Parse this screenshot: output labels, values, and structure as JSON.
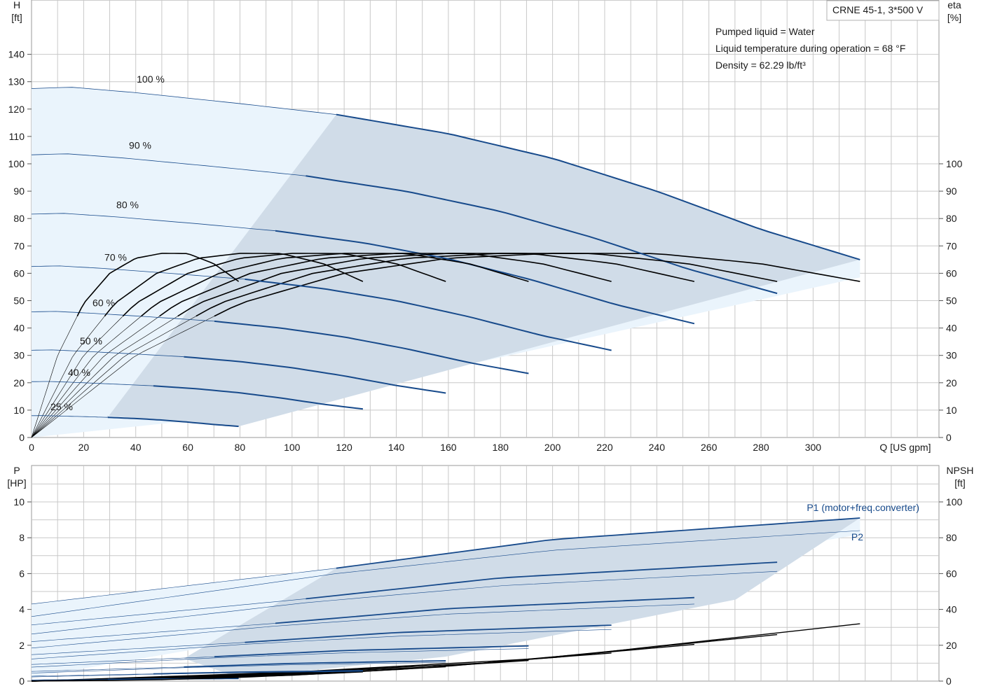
{
  "pump": {
    "title": "CRNE 45-1, 3*500 V",
    "notes": [
      "Pumped liquid = Water",
      "Liquid temperature during operation = 68 °F",
      "Density = 62.29 lb/ft³"
    ]
  },
  "colors": {
    "curve": "#174a8b",
    "eta": "#000000",
    "shade": "#d0dce8",
    "light_shade": "#eaf4fc",
    "grid": "#c8c8c8"
  },
  "chart_data": [
    {
      "type": "line",
      "xlabel": "Q [US gpm]",
      "ylabel_left": [
        "H",
        "[ft]"
      ],
      "ylabel_right": [
        "eta",
        "[%]"
      ],
      "xlim": [
        0,
        320
      ],
      "ylim": [
        0,
        145
      ],
      "x_ticks": [
        0,
        20,
        40,
        60,
        80,
        100,
        120,
        140,
        160,
        180,
        200,
        220,
        240,
        260,
        280,
        300
      ],
      "y_ticks_left": [
        0,
        10,
        20,
        30,
        40,
        50,
        60,
        70,
        80,
        90,
        100,
        110,
        120,
        130,
        140
      ],
      "y_ticks_right": [
        0,
        10,
        20,
        30,
        40,
        50,
        60,
        70,
        80,
        90,
        100
      ],
      "series": [
        {
          "name": "100 %",
          "speed": 1.0
        },
        {
          "name": "90 %",
          "speed": 0.9
        },
        {
          "name": "80 %",
          "speed": 0.8
        },
        {
          "name": "70 %",
          "speed": 0.7
        },
        {
          "name": "60 %",
          "speed": 0.6
        },
        {
          "name": "50 %",
          "speed": 0.5
        },
        {
          "name": "40 %",
          "speed": 0.4
        },
        {
          "name": "25 %",
          "speed": 0.25
        }
      ],
      "head_curve_100pct": {
        "x": [
          0,
          15,
          40,
          80,
          117,
          160,
          200,
          240,
          280,
          318
        ],
        "y": [
          127.5,
          128,
          126,
          122,
          118,
          111,
          102,
          90,
          76,
          65
        ]
      },
      "eta_curve_100pct": {
        "x": [
          0,
          40,
          80,
          120,
          160,
          200,
          240,
          280,
          318
        ],
        "y": [
          0,
          30,
          49,
          60,
          65.5,
          67.3,
          67.2,
          63.5,
          57
        ]
      },
      "operating_area": {
        "min_flow_100pct": 117,
        "max_flow_100pct": 318
      }
    },
    {
      "type": "line",
      "xlim": [
        0,
        320
      ],
      "ylim": [
        0,
        10.6
      ],
      "ylabel_left": [
        "P",
        "[HP]"
      ],
      "ylabel_right": [
        "NPSH",
        "[ft]"
      ],
      "y_ticks_left": [
        0,
        2,
        4,
        6,
        8,
        10
      ],
      "y_ticks_right": [
        0,
        20,
        40,
        60,
        80,
        100
      ],
      "labels": [
        "P1 (motor+freq.converter)",
        "P2"
      ],
      "p1_curve_100pct": {
        "x": [
          0,
          117,
          200,
          318
        ],
        "y": [
          4.3,
          6.3,
          7.9,
          9.1
        ]
      },
      "p2_curve_100pct": {
        "x": [
          0,
          117,
          200,
          318
        ],
        "y": [
          3.6,
          6.0,
          7.3,
          8.4
        ]
      },
      "npsh_curve": {
        "x": [
          0,
          100,
          200,
          318
        ],
        "y": [
          0,
          5,
          13,
          32
        ]
      }
    }
  ]
}
